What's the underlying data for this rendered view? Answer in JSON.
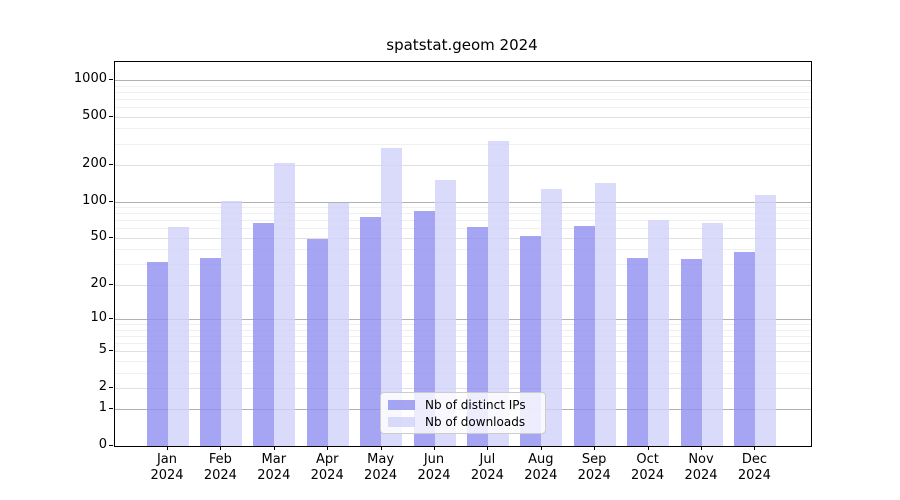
{
  "title": "spatstat.geom 2024",
  "chart_data": {
    "type": "bar",
    "title": "spatstat.geom 2024",
    "y_scale": "log10(1+x)",
    "grid": true,
    "legend_position": "lower center inside axes",
    "year": "2024",
    "months": [
      "Jan",
      "Feb",
      "Mar",
      "Apr",
      "May",
      "Jun",
      "Jul",
      "Aug",
      "Sep",
      "Oct",
      "Nov",
      "Dec"
    ],
    "series": [
      {
        "name": "Nb of distinct IPs",
        "color": "rgba(143,143,241,0.8)",
        "values": [
          31,
          34,
          66,
          49,
          75,
          84,
          61,
          52,
          63,
          34,
          33,
          38
        ]
      },
      {
        "name": "Nb of downloads",
        "color": "rgba(209,209,249,0.8)",
        "values": [
          61,
          101,
          208,
          98,
          277,
          152,
          314,
          126,
          141,
          70,
          66,
          113
        ]
      }
    ],
    "y_ticks": [
      0,
      1,
      2,
      5,
      10,
      20,
      50,
      100,
      200,
      500,
      1000
    ],
    "y_decade_lines": [
      1,
      10,
      100,
      1000
    ],
    "y_minor_lines": [
      3,
      4,
      6,
      7,
      8,
      9,
      30,
      40,
      60,
      70,
      80,
      90,
      300,
      400,
      600,
      700,
      800,
      900
    ],
    "ylim": [
      0,
      1400
    ]
  }
}
